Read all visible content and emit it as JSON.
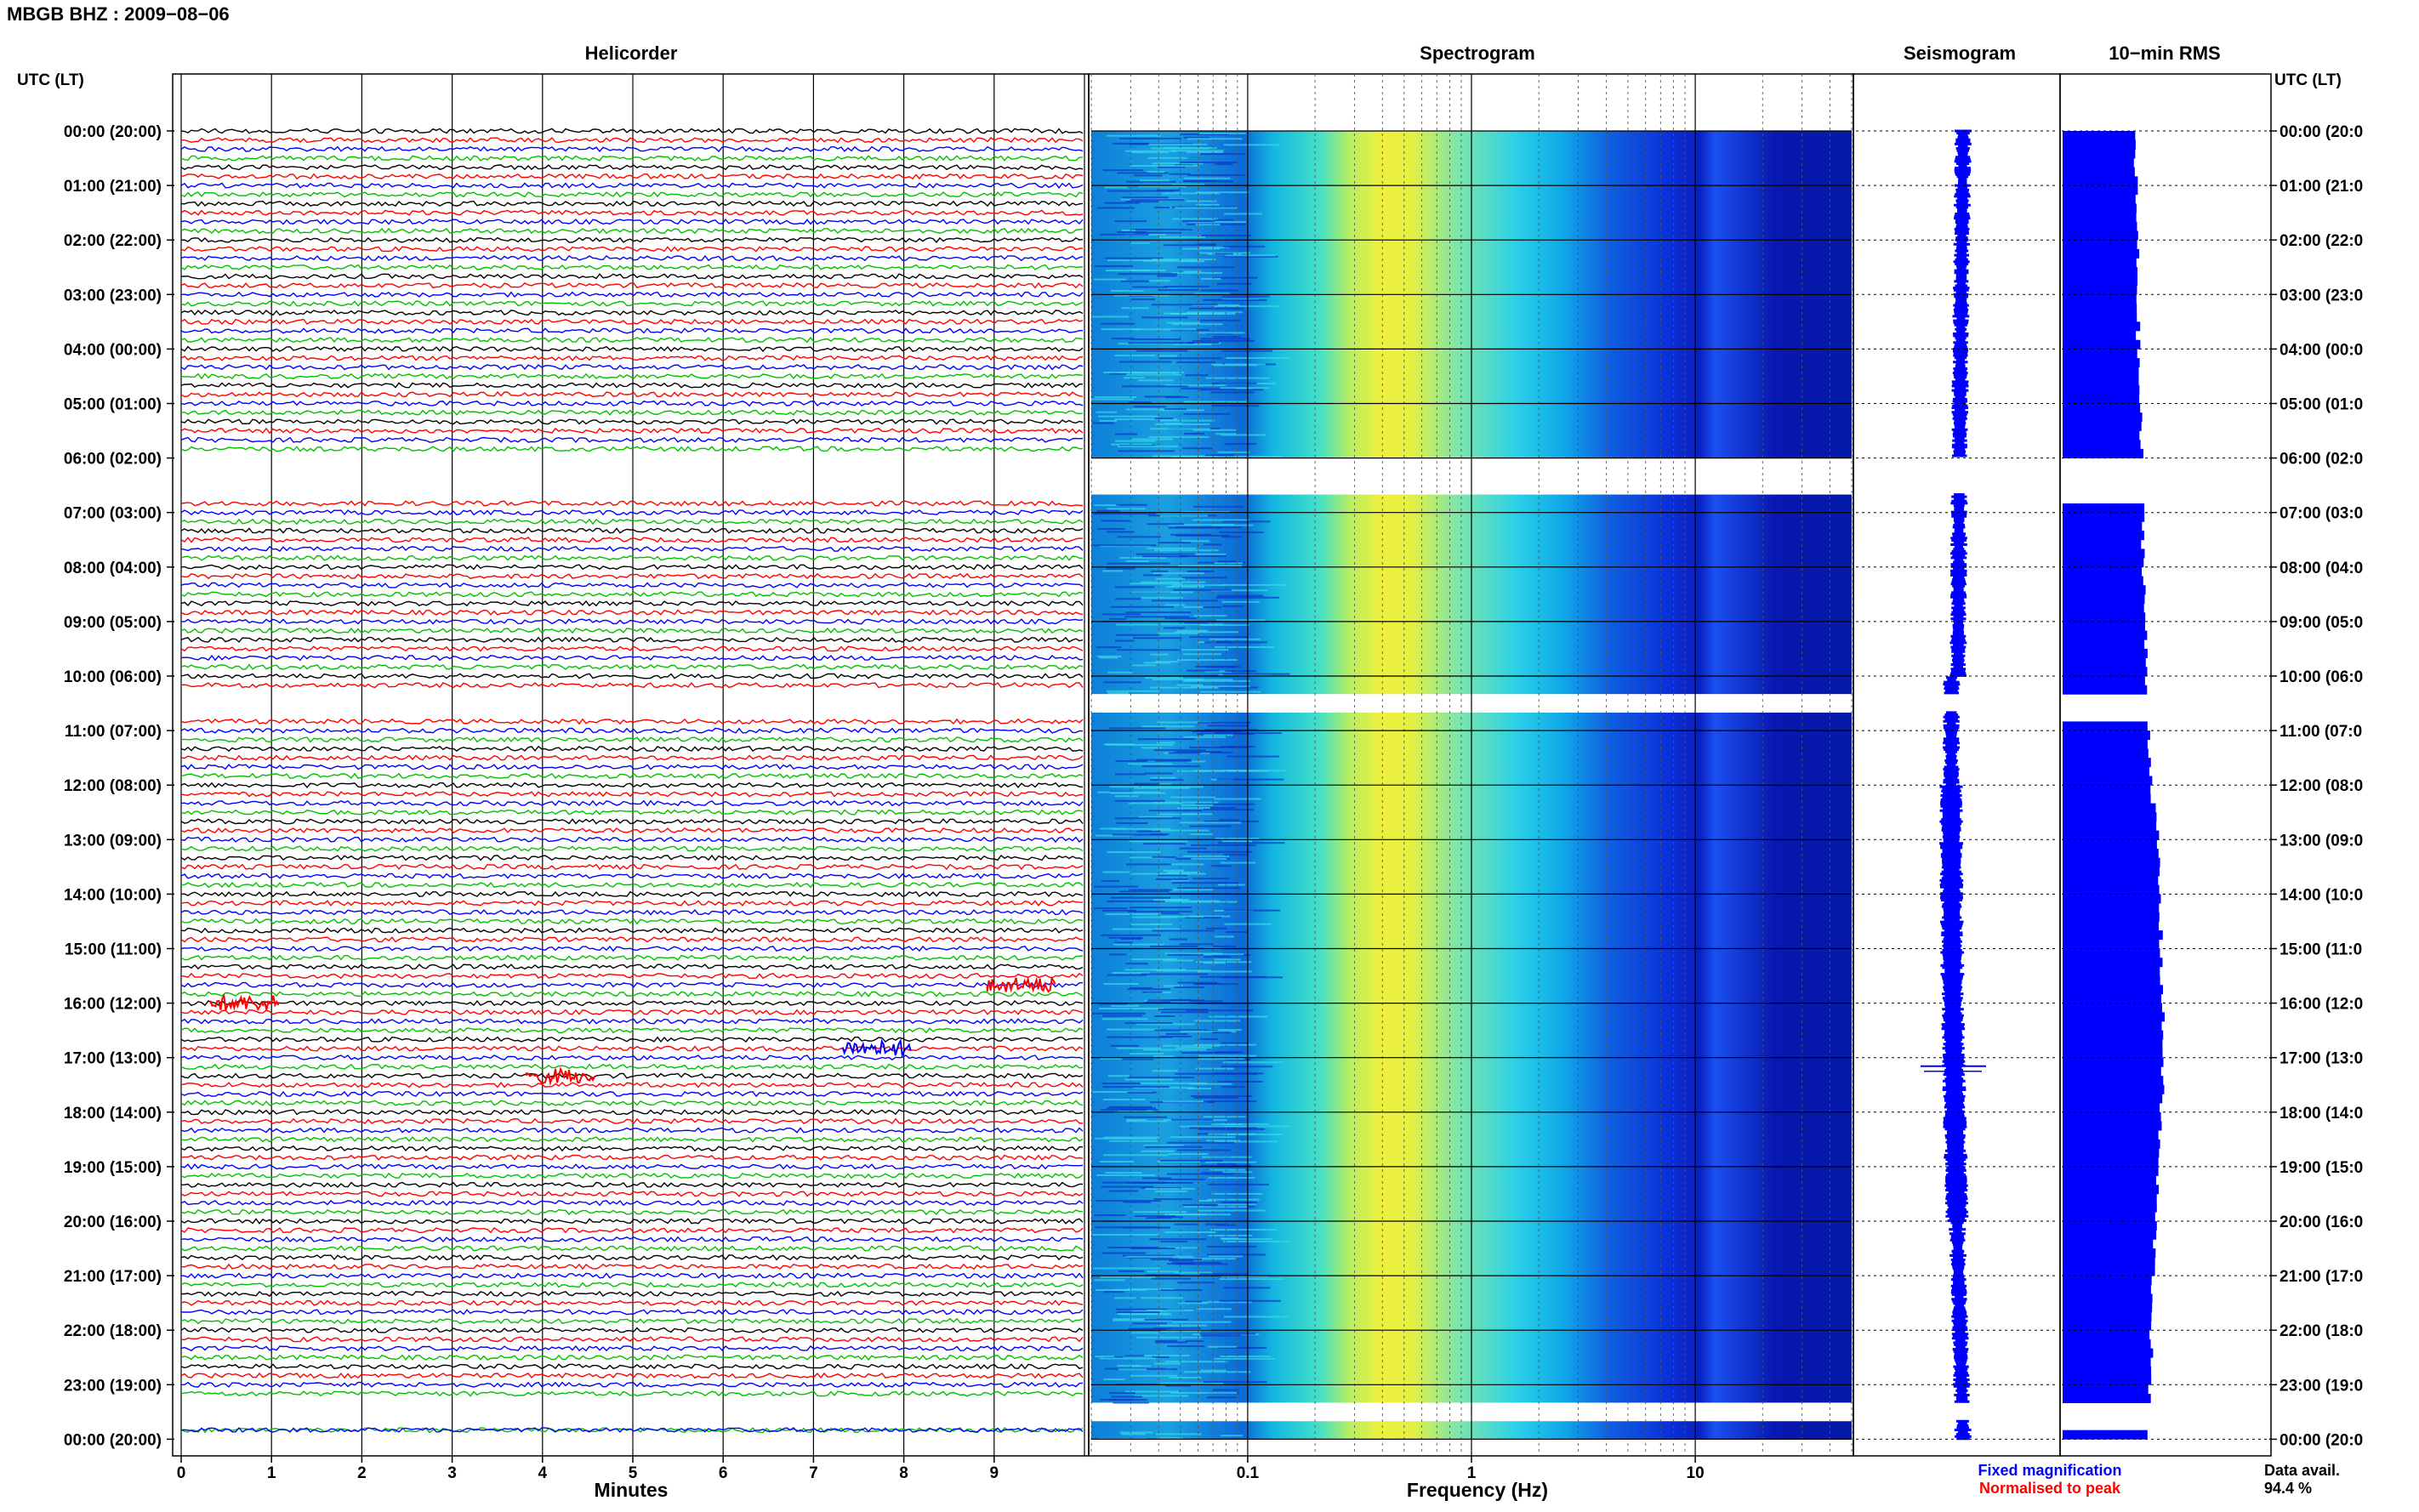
{
  "header": {
    "title": "MBGB BHZ : 2009−08−06"
  },
  "panels": {
    "helicorder": "Helicorder",
    "spectrogram": "Spectrogram",
    "seismogram": "Seismogram",
    "rms": "10−min RMS"
  },
  "axis_left_title": "UTC (LT)",
  "axis_right_title": "UTC (LT)",
  "time_labels": [
    "00:00 (20:00)",
    "01:00 (21:00)",
    "02:00 (22:00)",
    "03:00 (23:00)",
    "04:00 (00:00)",
    "05:00 (01:00)",
    "06:00 (02:00)",
    "07:00 (03:00)",
    "08:00 (04:00)",
    "09:00 (05:00)",
    "10:00 (06:00)",
    "11:00 (07:00)",
    "12:00 (08:00)",
    "13:00 (09:00)",
    "14:00 (10:00)",
    "15:00 (11:00)",
    "16:00 (12:00)",
    "17:00 (13:00)",
    "18:00 (14:00)",
    "19:00 (15:00)",
    "20:00 (16:00)",
    "21:00 (17:00)",
    "22:00 (18:00)",
    "23:00 (19:00)",
    "00:00 (20:00)"
  ],
  "right_time_labels": [
    "00:00 (20:0",
    "01:00 (21:0",
    "02:00 (22:0",
    "03:00 (23:0",
    "04:00 (00:0",
    "05:00 (01:0",
    "06:00 (02:0",
    "07:00 (03:0",
    "08:00 (04:0",
    "09:00 (05:0",
    "10:00 (06:0",
    "11:00 (07:0",
    "12:00 (08:0",
    "13:00 (09:0",
    "14:00 (10:0",
    "15:00 (11:0",
    "16:00 (12:0",
    "17:00 (13:0",
    "18:00 (14:0",
    "19:00 (15:0",
    "20:00 (16:0",
    "21:00 (17:0",
    "22:00 (18:0",
    "23:00 (19:0",
    "00:00 (20:0"
  ],
  "legend": {
    "fixed": "Fixed magnification",
    "normalised": "Normalised to peak",
    "fixed_color": "#0000ff",
    "normalised_color": "#ff0000"
  },
  "data_avail": {
    "label": "Data avail.",
    "value": "94.4 %"
  },
  "colors": {
    "trace_cycle": [
      "#000000",
      "#ff0000",
      "#0000ff",
      "#00c000"
    ],
    "seismogram": "#0000ff",
    "rms_bars": "#0000ff"
  },
  "chart_data": [
    {
      "type": "line",
      "panel": "helicorder",
      "xlabel": "Minutes",
      "xlim": [
        0,
        10
      ],
      "x_ticks": [
        "0",
        "1",
        "2",
        "3",
        "4",
        "5",
        "6",
        "7",
        "8",
        "9"
      ],
      "hours": 24,
      "lines_per_hour": 6,
      "trace_color_cycle": [
        "black",
        "red",
        "blue",
        "green"
      ],
      "data_gaps_hours": [
        [
          6.0,
          6.67
        ],
        [
          10.33,
          10.67
        ],
        [
          23.33,
          23.67
        ]
      ],
      "events": [
        {
          "hour": 15.67,
          "minute": 9.3,
          "color": "red"
        },
        {
          "hour": 16.0,
          "minute": 0.7,
          "color": "red"
        },
        {
          "hour": 16.83,
          "minute": 7.7,
          "color": "blue"
        },
        {
          "hour": 17.33,
          "minute": 4.2,
          "color": "red"
        }
      ]
    },
    {
      "type": "heatmap",
      "panel": "spectrogram",
      "xlabel": "Frequency (Hz)",
      "xscale": "log",
      "xlim": [
        0.02,
        50
      ],
      "x_ticks": [
        "0.1",
        "1",
        "10"
      ],
      "colormap": [
        "#00008b",
        "#0000ff",
        "#00bfff",
        "#00ffff",
        "#ffff00"
      ],
      "peak_band_hz": [
        0.25,
        0.45
      ],
      "line_feature_hz": 10.5,
      "data_gaps_hours": [
        [
          6.0,
          6.67
        ],
        [
          10.33,
          10.67
        ],
        [
          23.33,
          23.67
        ]
      ]
    },
    {
      "type": "line",
      "panel": "seismogram",
      "legend": [
        "Fixed magnification"
      ],
      "data_gaps_hours": [
        [
          6.0,
          6.67
        ],
        [
          10.33,
          10.67
        ],
        [
          23.33,
          23.67
        ]
      ],
      "spike_hour": 17.0
    },
    {
      "type": "bar",
      "panel": "rms",
      "orientation": "horizontal",
      "interval_minutes": 10,
      "profile_hours": [
        0,
        2,
        4,
        6,
        8,
        10,
        12,
        13,
        15,
        17,
        19,
        21,
        23,
        24
      ],
      "profile_values": [
        0.63,
        0.65,
        0.66,
        0.69,
        0.71,
        0.73,
        0.78,
        0.83,
        0.86,
        0.88,
        0.83,
        0.79,
        0.76,
        0.72
      ],
      "data_gaps_hours": [
        [
          6.0,
          6.67
        ],
        [
          10.33,
          10.67
        ],
        [
          23.33,
          23.67
        ]
      ]
    }
  ]
}
